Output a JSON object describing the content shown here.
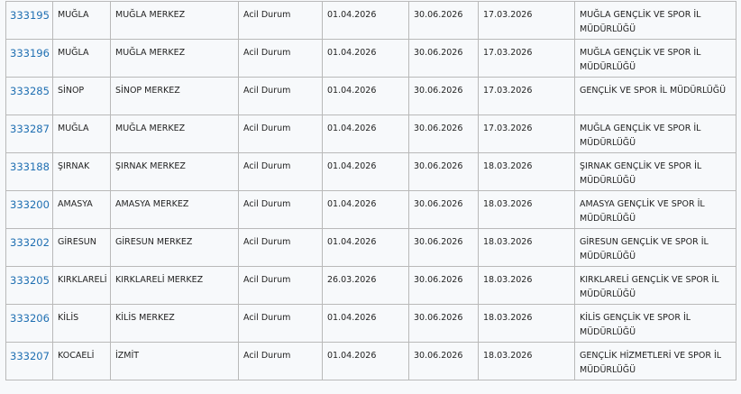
{
  "table": {
    "rows": [
      [
        "333195",
        "MUĞLA",
        "MUĞLA MERKEZ",
        "Acil Durum",
        "01.04.2026",
        "30.06.2026",
        "17.03.2026",
        "MUĞLA GENÇLİK VE SPOR İL MÜDÜRLÜĞÜ"
      ],
      [
        "333196",
        "MUĞLA",
        "MUĞLA MERKEZ",
        "Acil Durum",
        "01.04.2026",
        "30.06.2026",
        "17.03.2026",
        "MUĞLA GENÇLİK VE SPOR İL MÜDÜRLÜĞÜ"
      ],
      [
        "333285",
        "SİNOP",
        "SİNOP MERKEZ",
        "Acil Durum",
        "01.04.2026",
        "30.06.2026",
        "17.03.2026",
        "GENÇLİK VE SPOR İL MÜDÜRLÜĞÜ"
      ],
      [
        "333287",
        "MUĞLA",
        "MUĞLA MERKEZ",
        "Acil Durum",
        "01.04.2026",
        "30.06.2026",
        "17.03.2026",
        "MUĞLA GENÇLİK VE SPOR İL MÜDÜRLÜĞÜ"
      ],
      [
        "333188",
        "ŞIRNAK",
        "ŞIRNAK MERKEZ",
        "Acil Durum",
        "01.04.2026",
        "30.06.2026",
        "18.03.2026",
        "ŞIRNAK GENÇLİK VE SPOR İL MÜDÜRLÜĞÜ"
      ],
      [
        "333200",
        "AMASYA",
        "AMASYA MERKEZ",
        "Acil Durum",
        "01.04.2026",
        "30.06.2026",
        "18.03.2026",
        "AMASYA GENÇLİK VE SPOR İL MÜDÜRLÜĞÜ"
      ],
      [
        "333202",
        "GİRESUN",
        "GİRESUN MERKEZ",
        "Acil Durum",
        "01.04.2026",
        "30.06.2026",
        "18.03.2026",
        "GİRESUN GENÇLİK VE SPOR İL MÜDÜRLÜĞÜ"
      ],
      [
        "333205",
        "KIRKLARELİ",
        "KIRKLARELİ MERKEZ",
        "Acil Durum",
        "26.03.2026",
        "30.06.2026",
        "18.03.2026",
        "KIRKLARELİ GENÇLİK VE SPOR İL MÜDÜRLÜĞÜ"
      ],
      [
        "333206",
        "KİLİS",
        "KİLİS MERKEZ",
        "Acil Durum",
        "01.04.2026",
        "30.06.2026",
        "18.03.2026",
        "KİLİS GENÇLİK VE SPOR İL MÜDÜRLÜĞÜ"
      ],
      [
        "333207",
        "KOCAELİ",
        "İZMİT",
        "Acil Durum",
        "01.04.2026",
        "30.06.2026",
        "18.03.2026",
        "GENÇLİK HİZMETLERİ VE SPOR İL MÜDÜRLÜĞÜ"
      ]
    ]
  }
}
